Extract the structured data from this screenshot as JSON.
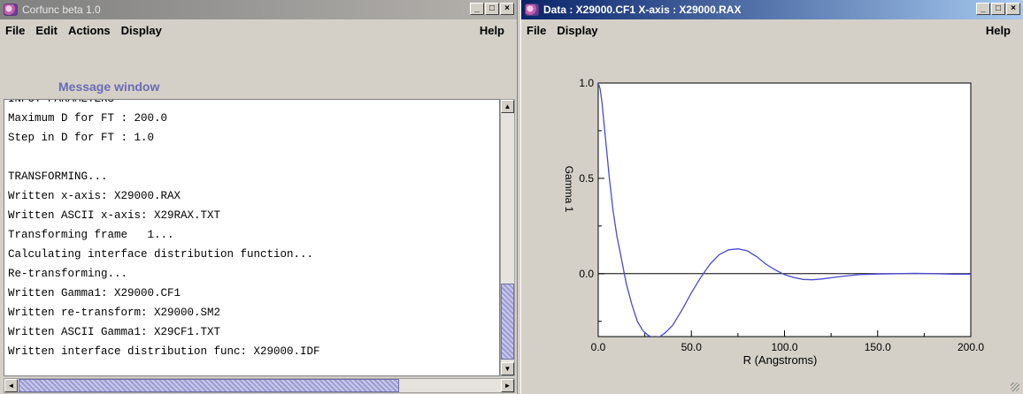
{
  "left_window": {
    "title": "Corfunc beta 1.0",
    "controls": {
      "minimize": "_",
      "maximize": "□",
      "close": "×"
    },
    "menu": [
      "File",
      "Edit",
      "Actions",
      "Display"
    ],
    "help": "Help",
    "message_label": "Message window",
    "messages": [
      "INPUT PARAMETERS",
      "Maximum D for FT : 200.0",
      "Step in D for FT : 1.0",
      "",
      "TRANSFORMING...",
      "Written x-axis: X29000.RAX",
      "Written ASCII x-axis: X29RAX.TXT",
      "Transforming frame   1...",
      "Calculating interface distribution function...",
      "Re-transforming...",
      "Written Gamma1: X29000.CF1",
      "Written re-transform: X29000.SM2",
      "Written ASCII Gamma1: X29CF1.TXT",
      "Written interface distribution func: X29000.IDF"
    ],
    "scroll_up": "▲",
    "scroll_down": "▼",
    "scroll_left": "◄",
    "scroll_right": "►"
  },
  "right_window": {
    "title": "Data : X29000.CF1  X-axis : X29000.RAX",
    "controls": {
      "minimize": "_",
      "maximize": "□",
      "close": "×"
    },
    "menu": [
      "File",
      "Display"
    ],
    "help": "Help"
  },
  "chart_data": {
    "type": "line",
    "xlabel": "R (Angstroms)",
    "ylabel": "Gamma 1",
    "xlim": [
      0,
      200
    ],
    "ylim": [
      -0.33,
      1.0
    ],
    "xticks": [
      0,
      50,
      100,
      150,
      200
    ],
    "xtick_labels": [
      "0.0",
      "50.0",
      "100.0",
      "150.0",
      "200.0"
    ],
    "yticks": [
      0,
      0.5,
      1.0
    ],
    "ytick_labels": [
      "0.0",
      "0.5",
      "1.0"
    ],
    "zero_line": true,
    "line_color": "#4a4ad4",
    "series": [
      {
        "x": [
          0,
          1,
          2,
          3,
          4,
          6,
          8,
          10,
          12,
          15,
          18,
          21,
          24,
          27,
          30,
          33,
          36,
          40,
          45,
          50,
          55,
          60,
          65,
          70,
          75,
          80,
          85,
          90,
          95,
          100,
          105,
          110,
          115,
          120,
          130,
          140,
          150,
          160,
          170,
          180,
          190,
          200
        ],
        "y": [
          1.0,
          0.97,
          0.9,
          0.8,
          0.7,
          0.5,
          0.33,
          0.2,
          0.1,
          -0.05,
          -0.16,
          -0.25,
          -0.3,
          -0.325,
          -0.335,
          -0.33,
          -0.31,
          -0.27,
          -0.19,
          -0.1,
          -0.02,
          0.05,
          0.1,
          0.125,
          0.13,
          0.12,
          0.09,
          0.05,
          0.02,
          -0.005,
          -0.02,
          -0.03,
          -0.032,
          -0.028,
          -0.015,
          -0.005,
          -0.002,
          0.0,
          0.002,
          0.0,
          -0.003,
          -0.003
        ]
      }
    ]
  }
}
